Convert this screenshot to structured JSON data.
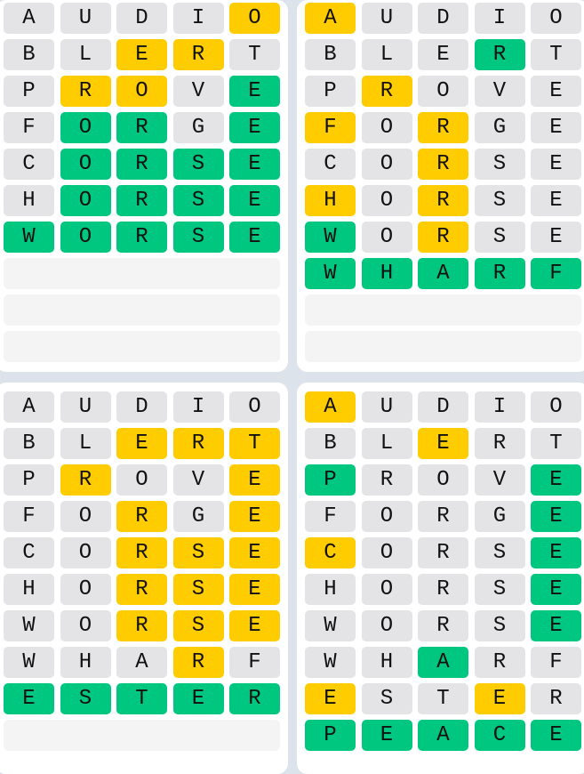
{
  "colors": {
    "absent": "#e4e4e7",
    "present": "#ffcc00",
    "correct": "#00c77f",
    "empty": "#f4f4f5",
    "background": "#dde3ea"
  },
  "boards": [
    {
      "rows": [
        {
          "word": "AUDIO",
          "states": "xxxxy"
        },
        {
          "word": "BLERT",
          "states": "xxyyx"
        },
        {
          "word": "PROVE",
          "states": "xyyxg"
        },
        {
          "word": "FORGE",
          "states": "xggxg"
        },
        {
          "word": "CORSE",
          "states": "xgggg"
        },
        {
          "word": "HORSE",
          "states": "xgggg"
        },
        {
          "word": "WORSE",
          "states": "ggggg"
        }
      ],
      "empty_rows": 3
    },
    {
      "rows": [
        {
          "word": "AUDIO",
          "states": "yxxxx"
        },
        {
          "word": "BLERT",
          "states": "xxxgx"
        },
        {
          "word": "PROVE",
          "states": "xyxxx"
        },
        {
          "word": "FORGE",
          "states": "yxyxx"
        },
        {
          "word": "CORSE",
          "states": "xxyxx"
        },
        {
          "word": "HORSE",
          "states": "yxyxx"
        },
        {
          "word": "WORSE",
          "states": "gxyxx"
        },
        {
          "word": "WHARF",
          "states": "ggggg"
        }
      ],
      "empty_rows": 2
    },
    {
      "rows": [
        {
          "word": "AUDIO",
          "states": "xxxxx"
        },
        {
          "word": "BLERT",
          "states": "xxyyy"
        },
        {
          "word": "PROVE",
          "states": "xyxxy"
        },
        {
          "word": "FORGE",
          "states": "xxyxy"
        },
        {
          "word": "CORSE",
          "states": "xxyyy"
        },
        {
          "word": "HORSE",
          "states": "xxyyy"
        },
        {
          "word": "WORSE",
          "states": "xxyyy"
        },
        {
          "word": "WHARF",
          "states": "xxxyx"
        },
        {
          "word": "ESTER",
          "states": "ggggg"
        }
      ],
      "empty_rows": 1
    },
    {
      "rows": [
        {
          "word": "AUDIO",
          "states": "yxxxx"
        },
        {
          "word": "BLERT",
          "states": "xxyxx"
        },
        {
          "word": "PROVE",
          "states": "gxxxg"
        },
        {
          "word": "FORGE",
          "states": "xxxxg"
        },
        {
          "word": "CORSE",
          "states": "yxxxg"
        },
        {
          "word": "HORSE",
          "states": "xxxxg"
        },
        {
          "word": "WORSE",
          "states": "xxxxg"
        },
        {
          "word": "WHARF",
          "states": "xxgxx"
        },
        {
          "word": "ESTER",
          "states": "yxxyx"
        },
        {
          "word": "PEACE",
          "states": "ggggg"
        }
      ],
      "empty_rows": 0
    }
  ]
}
